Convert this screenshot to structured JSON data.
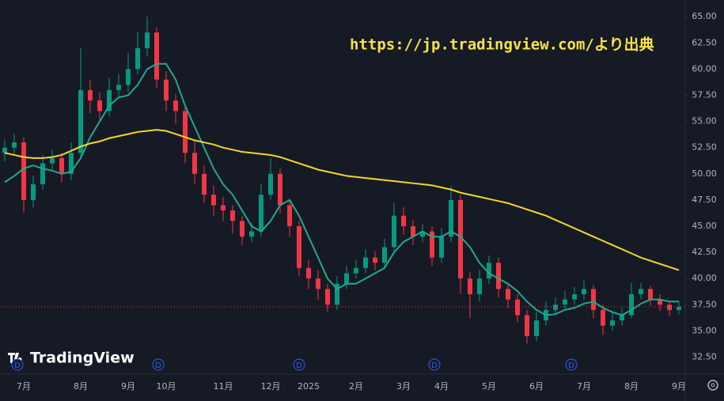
{
  "chart_data": {
    "type": "candlestick",
    "watermark": "https://jp.tradingview.com/より出典",
    "logo_text": "TradingView",
    "categories": [
      null,
      null,
      "7月",
      null,
      null,
      null,
      null,
      null,
      "8月",
      null,
      null,
      null,
      null,
      "9月",
      null,
      null,
      null,
      "10月",
      null,
      null,
      null,
      null,
      null,
      "11月",
      null,
      null,
      null,
      null,
      "12月",
      null,
      null,
      null,
      "2025",
      null,
      null,
      null,
      null,
      "2月",
      null,
      null,
      null,
      null,
      "3月",
      null,
      null,
      null,
      "4月",
      null,
      null,
      null,
      null,
      "5月",
      null,
      null,
      null,
      null,
      "6月",
      null,
      null,
      null,
      null,
      "7月",
      null,
      null,
      null,
      null,
      "8月",
      null,
      null,
      null,
      null,
      "9月"
    ],
    "open": [
      52.0,
      52.5,
      53.0,
      47.5,
      49.0,
      51.0,
      51.5,
      50.0,
      52.0,
      58.0,
      57.0,
      56.0,
      58.0,
      58.5,
      60.0,
      62.0,
      63.5,
      59.0,
      57.0,
      56.0,
      52.0,
      50.0,
      48.0,
      47.0,
      46.5,
      45.5,
      44.0,
      44.5,
      48.0,
      50.0,
      47.0,
      45.0,
      41.0,
      40.0,
      39.0,
      37.5,
      39.5,
      40.5,
      41.0,
      42.0,
      41.5,
      43.0,
      46.0,
      45.0,
      44.0,
      44.5,
      42.0,
      44.0,
      47.5,
      40.0,
      38.5,
      40.0,
      41.5,
      39.0,
      38.0,
      36.5,
      34.5,
      36.0,
      37.0,
      37.5,
      38.0,
      38.5,
      39.0,
      37.0,
      35.5,
      36.0,
      36.5,
      38.5,
      39.0,
      38.0,
      37.5,
      37.0
    ],
    "high": [
      53.3,
      53.8,
      53.5,
      49.8,
      51.8,
      52.3,
      52.0,
      53.0,
      62.0,
      59.0,
      57.8,
      59.2,
      59.5,
      61.5,
      63.5,
      65.0,
      64.0,
      59.8,
      57.6,
      56.5,
      53.2,
      50.8,
      48.9,
      47.8,
      47.0,
      46.0,
      45.3,
      49.0,
      51.5,
      50.5,
      47.6,
      45.5,
      41.8,
      40.8,
      39.5,
      40.2,
      41.2,
      41.8,
      42.8,
      42.6,
      43.8,
      47.2,
      46.8,
      45.6,
      45.2,
      45.0,
      44.8,
      48.8,
      48.0,
      40.6,
      40.8,
      42.2,
      42.0,
      39.6,
      38.5,
      37.0,
      36.8,
      37.8,
      38.2,
      38.8,
      39.2,
      39.8,
      39.4,
      37.5,
      36.8,
      37.2,
      39.6,
      39.6,
      39.3,
      38.5,
      37.9,
      37.8
    ],
    "low": [
      51.2,
      51.9,
      46.3,
      46.8,
      48.5,
      50.4,
      49.2,
      49.4,
      51.5,
      55.8,
      55.2,
      55.5,
      57.2,
      57.8,
      59.5,
      61.2,
      58.2,
      56.0,
      54.8,
      51.0,
      49.0,
      47.2,
      46.0,
      45.5,
      44.3,
      43.2,
      43.5,
      44.0,
      47.5,
      46.2,
      44.0,
      40.2,
      39.0,
      38.0,
      36.8,
      37.0,
      39.0,
      40.0,
      40.5,
      40.8,
      41.0,
      42.6,
      44.2,
      43.2,
      43.5,
      41.2,
      41.5,
      43.5,
      38.5,
      36.2,
      37.8,
      39.5,
      38.2,
      37.2,
      35.8,
      33.8,
      34.0,
      35.5,
      36.5,
      37.0,
      37.5,
      38.0,
      36.2,
      34.6,
      35.0,
      35.5,
      36.2,
      38.0,
      37.4,
      36.9,
      36.4,
      36.6
    ],
    "close": [
      52.5,
      53.0,
      47.5,
      49.0,
      51.0,
      51.5,
      50.0,
      52.0,
      58.0,
      57.0,
      56.0,
      58.0,
      58.5,
      60.0,
      62.0,
      63.5,
      59.0,
      57.0,
      56.0,
      52.0,
      50.0,
      48.0,
      47.0,
      46.5,
      45.5,
      44.0,
      44.5,
      48.0,
      50.0,
      47.0,
      45.0,
      41.0,
      40.0,
      39.0,
      37.5,
      39.5,
      40.5,
      41.0,
      42.0,
      41.5,
      43.0,
      46.0,
      45.0,
      44.0,
      44.5,
      42.0,
      44.0,
      47.5,
      40.0,
      38.5,
      40.0,
      41.5,
      39.0,
      38.0,
      36.5,
      34.5,
      36.0,
      37.0,
      37.5,
      38.0,
      38.5,
      39.0,
      37.0,
      35.5,
      36.0,
      36.5,
      38.5,
      39.0,
      38.0,
      37.5,
      37.0,
      37.3
    ],
    "up_color": "#089981",
    "down_color": "#f23645",
    "series": [
      {
        "color": "#22a88f",
        "values": [
          49.2,
          49.8,
          50.5,
          50.8,
          50.5,
          50.3,
          50.0,
          50.2,
          51.5,
          53.5,
          55.0,
          56.5,
          57.3,
          57.5,
          58.5,
          60.0,
          60.5,
          60.5,
          59.0,
          56.5,
          54.5,
          52.5,
          50.5,
          49.0,
          48.0,
          46.5,
          45.0,
          44.5,
          45.5,
          47.0,
          47.5,
          46.0,
          44.0,
          42.0,
          40.0,
          39.0,
          39.5,
          39.5,
          40.0,
          40.5,
          41.0,
          42.5,
          43.5,
          44.0,
          44.5,
          44.0,
          44.0,
          44.5,
          44.0,
          43.0,
          41.5,
          40.5,
          40.0,
          39.5,
          38.8,
          37.8,
          37.0,
          36.5,
          36.6,
          37.0,
          37.2,
          37.6,
          37.8,
          37.2,
          36.8,
          36.5,
          37.0,
          37.6,
          38.0,
          38.0,
          37.8,
          37.8
        ]
      },
      {
        "color": "#f2d72c",
        "values": [
          52.0,
          51.8,
          51.6,
          51.5,
          51.5,
          51.6,
          51.8,
          52.2,
          52.6,
          52.9,
          53.1,
          53.4,
          53.6,
          53.8,
          54.0,
          54.1,
          54.2,
          54.1,
          53.8,
          53.5,
          53.2,
          53.0,
          52.8,
          52.5,
          52.3,
          52.1,
          52.0,
          51.9,
          51.8,
          51.6,
          51.3,
          51.0,
          50.7,
          50.4,
          50.2,
          50.0,
          49.8,
          49.7,
          49.6,
          49.5,
          49.4,
          49.3,
          49.2,
          49.1,
          49.0,
          48.9,
          48.7,
          48.5,
          48.2,
          48.0,
          47.8,
          47.6,
          47.4,
          47.2,
          46.9,
          46.6,
          46.3,
          46.0,
          45.6,
          45.2,
          44.8,
          44.4,
          44.0,
          43.6,
          43.2,
          42.8,
          42.4,
          42.0,
          41.7,
          41.4,
          41.1,
          40.8
        ]
      }
    ],
    "dividend_markers": [
      "D",
      "D",
      "D",
      "D",
      "D"
    ],
    "ylim": [
      31.1,
      66.6
    ],
    "yticks": [
      {
        "value": 32.5,
        "label": "32.50"
      },
      {
        "value": 35,
        "label": "35.00"
      },
      {
        "value": 37.5,
        "label": "37.50"
      },
      {
        "value": 40,
        "label": "40.00"
      },
      {
        "value": 42.5,
        "label": "42.50"
      },
      {
        "value": 45,
        "label": "45.00"
      },
      {
        "value": 47.5,
        "label": "47.50"
      },
      {
        "value": 50,
        "label": "50.00"
      },
      {
        "value": 52.5,
        "label": "52.50"
      },
      {
        "value": 55,
        "label": "55.00"
      },
      {
        "value": 57.5,
        "label": "57.50"
      },
      {
        "value": 60,
        "label": "60.00"
      },
      {
        "value": 62.5,
        "label": "62.50"
      },
      {
        "value": 65,
        "label": "65.00"
      }
    ],
    "last_price_line": true
  }
}
